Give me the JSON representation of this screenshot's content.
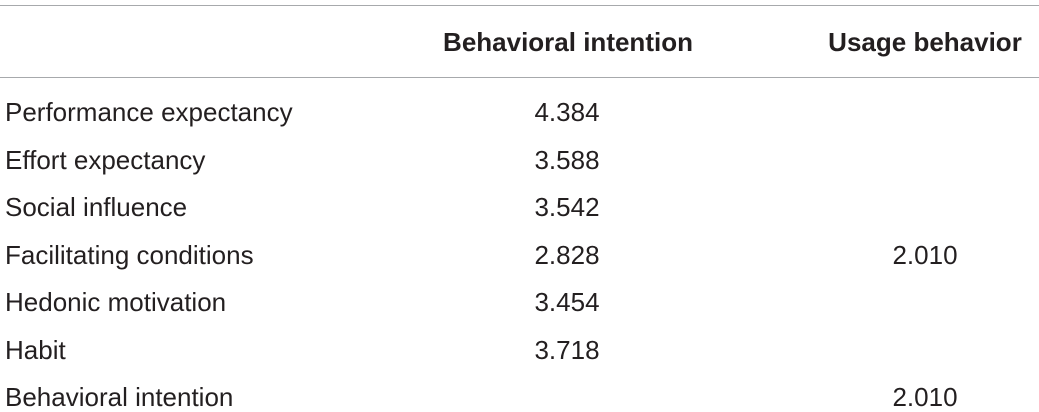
{
  "table": {
    "columns": [
      "Behavioral intention",
      "Usage behavior"
    ],
    "rows": [
      {
        "label": "Performance expectancy",
        "behavioral_intention": "4.384"
      },
      {
        "label": "Effort expectancy",
        "behavioral_intention": "3.588"
      },
      {
        "label": "Social influence",
        "behavioral_intention": "3.542"
      },
      {
        "label": "Facilitating conditions",
        "behavioral_intention": "2.828",
        "usage_behavior": "2.010"
      },
      {
        "label": "Hedonic motivation",
        "behavioral_intention": "3.454"
      },
      {
        "label": "Habit",
        "behavioral_intention": "3.718"
      },
      {
        "label": "Behavioral intention",
        "usage_behavior": "2.010"
      }
    ]
  }
}
